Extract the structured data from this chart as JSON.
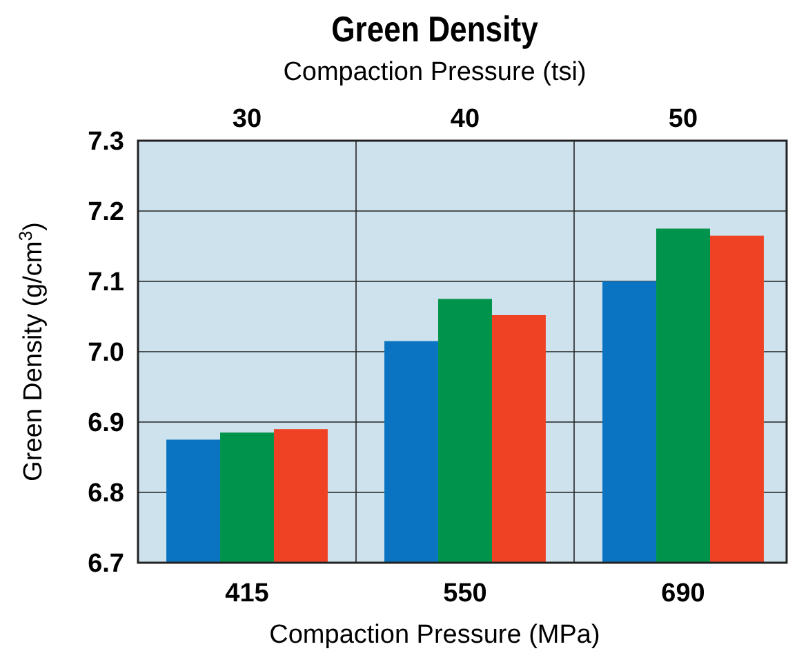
{
  "chart_data": {
    "type": "bar",
    "title": "Green Density",
    "xlabel": "Compaction Pressure (MPa)",
    "x2label": "Compaction Pressure (tsi)",
    "ylabel": "Green Density (g/cm$^{3}$)",
    "categories": [
      "415",
      "550",
      "690"
    ],
    "series": [
      {
        "color": "#0a74c2",
        "values": [
          6.875,
          7.015,
          7.1
        ]
      },
      {
        "color": "#00934b",
        "values": [
          6.885,
          7.075,
          7.175
        ]
      },
      {
        "color": "#ef4224",
        "values": [
          6.89,
          7.052,
          7.165
        ]
      }
    ],
    "ylim": [
      6.7,
      7.3
    ],
    "yticks": [
      {
        "value": 6.7,
        "label": "6.7"
      },
      {
        "value": 6.8,
        "label": "6.8"
      },
      {
        "value": 6.9,
        "label": "6.9"
      },
      {
        "value": 7.0,
        "label": "7.0"
      },
      {
        "value": 7.1,
        "label": "7.1"
      },
      {
        "value": 7.2,
        "label": "7.2"
      },
      {
        "value": 7.3,
        "label": "7.3"
      }
    ],
    "grid": true,
    "annotations": [
      "30",
      "40",
      "50"
    ]
  }
}
